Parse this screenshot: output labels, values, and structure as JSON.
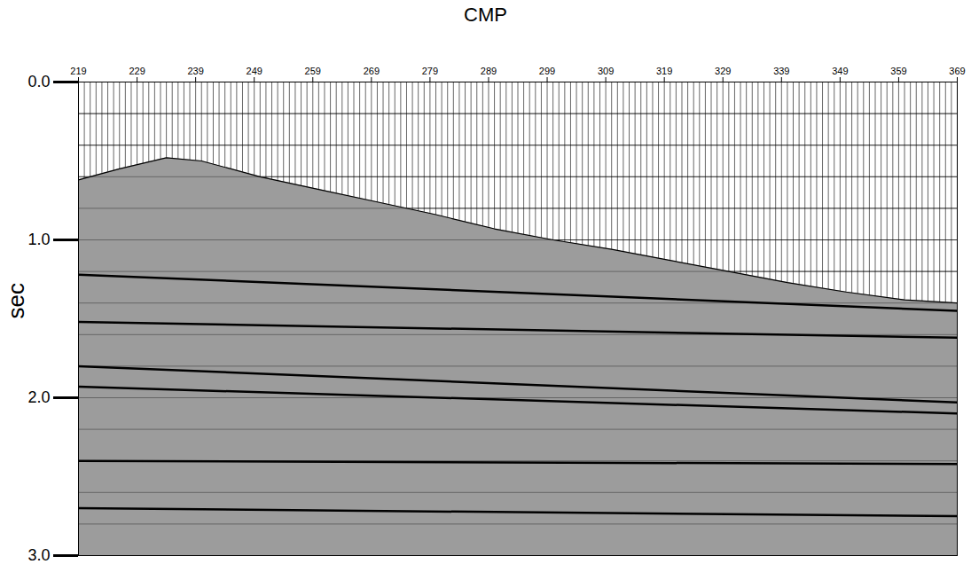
{
  "chart_data": {
    "type": "seismic section",
    "xlabel": "CMP",
    "ylabel": "sec",
    "color": "#000000",
    "xlim": [
      219,
      369
    ],
    "xticks": [
      219,
      229,
      239,
      249,
      259,
      269,
      279,
      289,
      299,
      309,
      319,
      329,
      339,
      349,
      359,
      369
    ],
    "ylim": [
      0,
      3
    ],
    "yticks": [
      {
        "value": 0,
        "label": "0.0"
      },
      {
        "value": 1,
        "label": "1.0"
      },
      {
        "value": 2,
        "label": "2.0"
      },
      {
        "value": 3,
        "label": "3.0"
      }
    ],
    "grid": true,
    "grid_lines": [
      0.2,
      0.4,
      0.6,
      0.8,
      1.0,
      1.2,
      1.4,
      1.6,
      1.8,
      2.0,
      2.2,
      2.4,
      2.6,
      2.8
    ],
    "traces": [
      219,
      220,
      221,
      222,
      223,
      224,
      225,
      226,
      227,
      228,
      229,
      230,
      231,
      232,
      233,
      234,
      235,
      236,
      237,
      238,
      239,
      240,
      241,
      242,
      243,
      244,
      245,
      246,
      247,
      248,
      249,
      250,
      251,
      252,
      253,
      254,
      255,
      256,
      257,
      258,
      259,
      260,
      261,
      262,
      263,
      264,
      265,
      266,
      267,
      268,
      269,
      270,
      271,
      272,
      273,
      274,
      275,
      276,
      277,
      278,
      279,
      280,
      281,
      282,
      283,
      284,
      285,
      286,
      287,
      288,
      289,
      290,
      291,
      292,
      293,
      294,
      295,
      296,
      297,
      298,
      299,
      300,
      301,
      302,
      303,
      304,
      305,
      306,
      307,
      308,
      309,
      310,
      311,
      312,
      313,
      314,
      315,
      316,
      317,
      318,
      319,
      320,
      321,
      322,
      323,
      324,
      325,
      326,
      327,
      328,
      329,
      330,
      331,
      332,
      333,
      334,
      335,
      336,
      337,
      338,
      339,
      340,
      341,
      342,
      343,
      344,
      345,
      346,
      347,
      348,
      349,
      350,
      351,
      352,
      353,
      354,
      355,
      356,
      357,
      358,
      359,
      360,
      361,
      362,
      363,
      364,
      365,
      366,
      367,
      368,
      369
    ],
    "first_break": {
      "x": [
        219,
        226,
        234,
        240,
        250,
        260,
        270,
        280,
        290,
        300,
        310,
        320,
        330,
        340,
        350,
        360,
        369
      ],
      "t": [
        0.62,
        0.55,
        0.48,
        0.5,
        0.6,
        0.68,
        0.76,
        0.84,
        0.93,
        1.0,
        1.06,
        1.13,
        1.2,
        1.27,
        1.33,
        1.38,
        1.4
      ]
    },
    "reflectors": [
      {
        "x": [
          219,
          369
        ],
        "t": [
          1.22,
          1.45
        ]
      },
      {
        "x": [
          219,
          369
        ],
        "t": [
          1.52,
          1.62
        ]
      },
      {
        "x": [
          219,
          369
        ],
        "t": [
          1.8,
          2.03
        ]
      },
      {
        "x": [
          219,
          369
        ],
        "t": [
          1.93,
          2.1
        ]
      },
      {
        "x": [
          219,
          369
        ],
        "t": [
          2.4,
          2.42
        ]
      },
      {
        "x": [
          219,
          369
        ],
        "t": [
          2.7,
          2.75
        ]
      }
    ]
  }
}
